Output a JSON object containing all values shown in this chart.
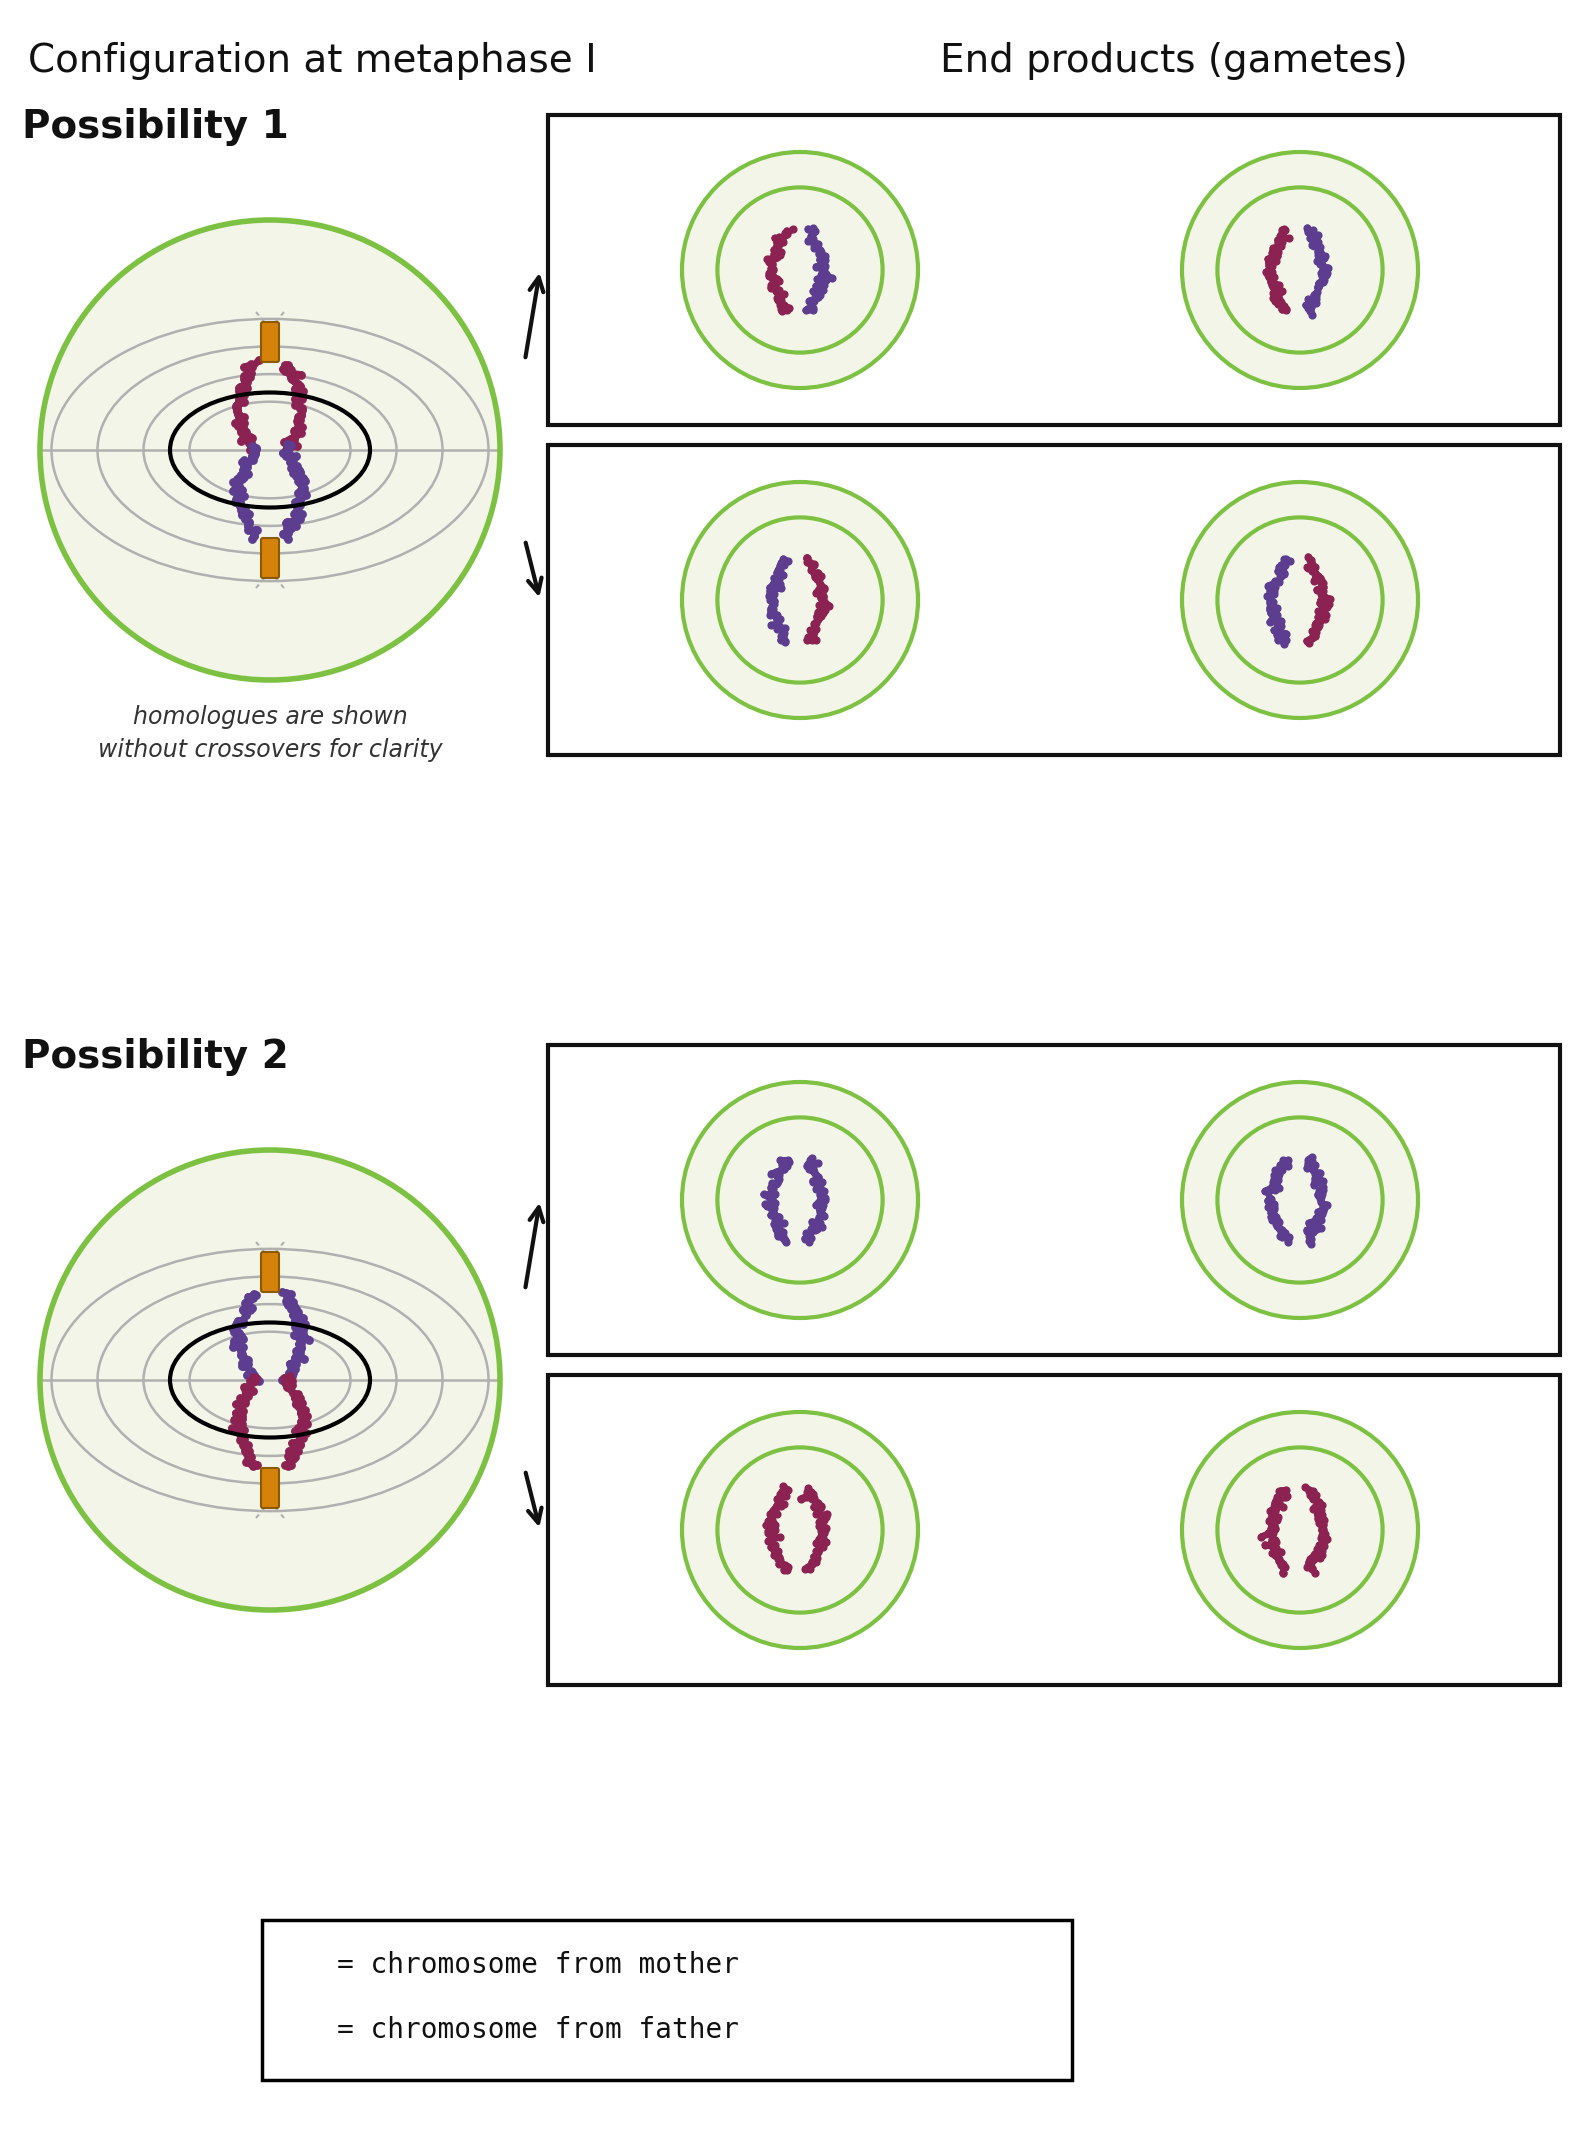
{
  "title_left": "Configuration at metaphase I",
  "title_right": "End products (gametes)",
  "possibility1_label": "Possibility 1",
  "possibility2_label": "Possibility 2",
  "italic_text": "homologues are shown\nwithout crossovers for clarity",
  "legend_mother": "= chromosome from mother",
  "legend_father": "= chromosome from father",
  "bg_color": "#ffffff",
  "cell_bg": "#f2f5e8",
  "cell_border": "#7dc142",
  "spindle_color": "#b0b0b0",
  "kinetochore_color": "#d4820a",
  "mother_color": "#8b2252",
  "father_color": "#5c3d8f",
  "box_border": "#111111",
  "arrow_color": "#111111",
  "gamete_bg": "#f2f5e8",
  "gamete_border": "#7dc142"
}
